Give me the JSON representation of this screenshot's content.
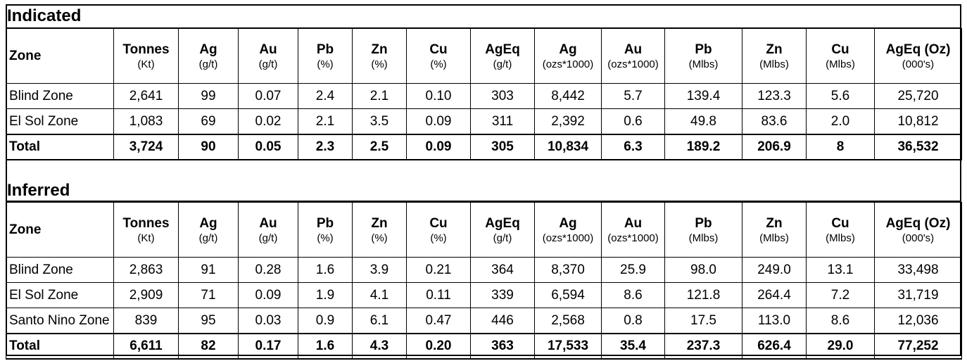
{
  "sections": [
    {
      "title": "Indicated",
      "headers": [
        {
          "name": "Zone",
          "unit": ""
        },
        {
          "name": "Tonnes",
          "unit": "(Kt)"
        },
        {
          "name": "Ag",
          "unit": "(g/t)"
        },
        {
          "name": "Au",
          "unit": "(g/t)"
        },
        {
          "name": "Pb",
          "unit": "(%)"
        },
        {
          "name": "Zn",
          "unit": "(%)"
        },
        {
          "name": "Cu",
          "unit": "(%)"
        },
        {
          "name": "AgEq",
          "unit": "(g/t)"
        },
        {
          "name": "Ag",
          "unit": "(ozs*1000)"
        },
        {
          "name": "Au",
          "unit": "(ozs*1000)"
        },
        {
          "name": "Pb",
          "unit": "(Mlbs)"
        },
        {
          "name": "Zn",
          "unit": "(Mlbs)"
        },
        {
          "name": "Cu",
          "unit": "(Mlbs)"
        },
        {
          "name": "AgEq (Oz)",
          "unit": "(000's)"
        }
      ],
      "rows": [
        [
          "Blind Zone",
          "2,641",
          "99",
          "0.07",
          "2.4",
          "2.1",
          "0.10",
          "303",
          "8,442",
          "5.7",
          "139.4",
          "123.3",
          "5.6",
          "25,720"
        ],
        [
          "El Sol Zone",
          "1,083",
          "69",
          "0.02",
          "2.1",
          "3.5",
          "0.09",
          "311",
          "2,392",
          "0.6",
          "49.8",
          "83.6",
          "2.0",
          "10,812"
        ]
      ],
      "total": [
        "Total",
        "3,724",
        "90",
        "0.05",
        "2.3",
        "2.5",
        "0.09",
        "305",
        "10,834",
        "6.3",
        "189.2",
        "206.9",
        "8",
        "36,532"
      ]
    },
    {
      "title": "Inferred",
      "headers": [
        {
          "name": "Zone",
          "unit": ""
        },
        {
          "name": "Tonnes",
          "unit": "(Kt)"
        },
        {
          "name": "Ag",
          "unit": "(g/t)"
        },
        {
          "name": "Au",
          "unit": "(g/t)"
        },
        {
          "name": "Pb",
          "unit": "(%)"
        },
        {
          "name": "Zn",
          "unit": "(%)"
        },
        {
          "name": "Cu",
          "unit": "(%)"
        },
        {
          "name": "AgEq",
          "unit": "(g/t)"
        },
        {
          "name": "Ag",
          "unit": "(ozs*1000)"
        },
        {
          "name": "Au",
          "unit": "(ozs*1000)"
        },
        {
          "name": "Pb",
          "unit": "(Mlbs)"
        },
        {
          "name": "Zn",
          "unit": "(Mlbs)"
        },
        {
          "name": "Cu",
          "unit": "(Mlbs)"
        },
        {
          "name": "AgEq (Oz)",
          "unit": "(000's)"
        }
      ],
      "rows": [
        [
          "Blind Zone",
          "2,863",
          "91",
          "0.28",
          "1.6",
          "3.9",
          "0.21",
          "364",
          "8,370",
          "25.9",
          "98.0",
          "249.0",
          "13.1",
          "33,498"
        ],
        [
          "El Sol Zone",
          "2,909",
          "71",
          "0.09",
          "1.9",
          "4.1",
          "0.11",
          "339",
          "6,594",
          "8.6",
          "121.8",
          "264.4",
          "7.2",
          "31,719"
        ],
        [
          "Santo Nino Zone",
          "839",
          "95",
          "0.03",
          "0.9",
          "6.1",
          "0.47",
          "446",
          "2,568",
          "0.8",
          "17.5",
          "113.0",
          "8.6",
          "12,036"
        ]
      ],
      "total": [
        "Total",
        "6,611",
        "82",
        "0.17",
        "1.6",
        "4.3",
        "0.20",
        "363",
        "17,533",
        "35.4",
        "237.3",
        "626.4",
        "29.0",
        "77,252"
      ]
    }
  ]
}
